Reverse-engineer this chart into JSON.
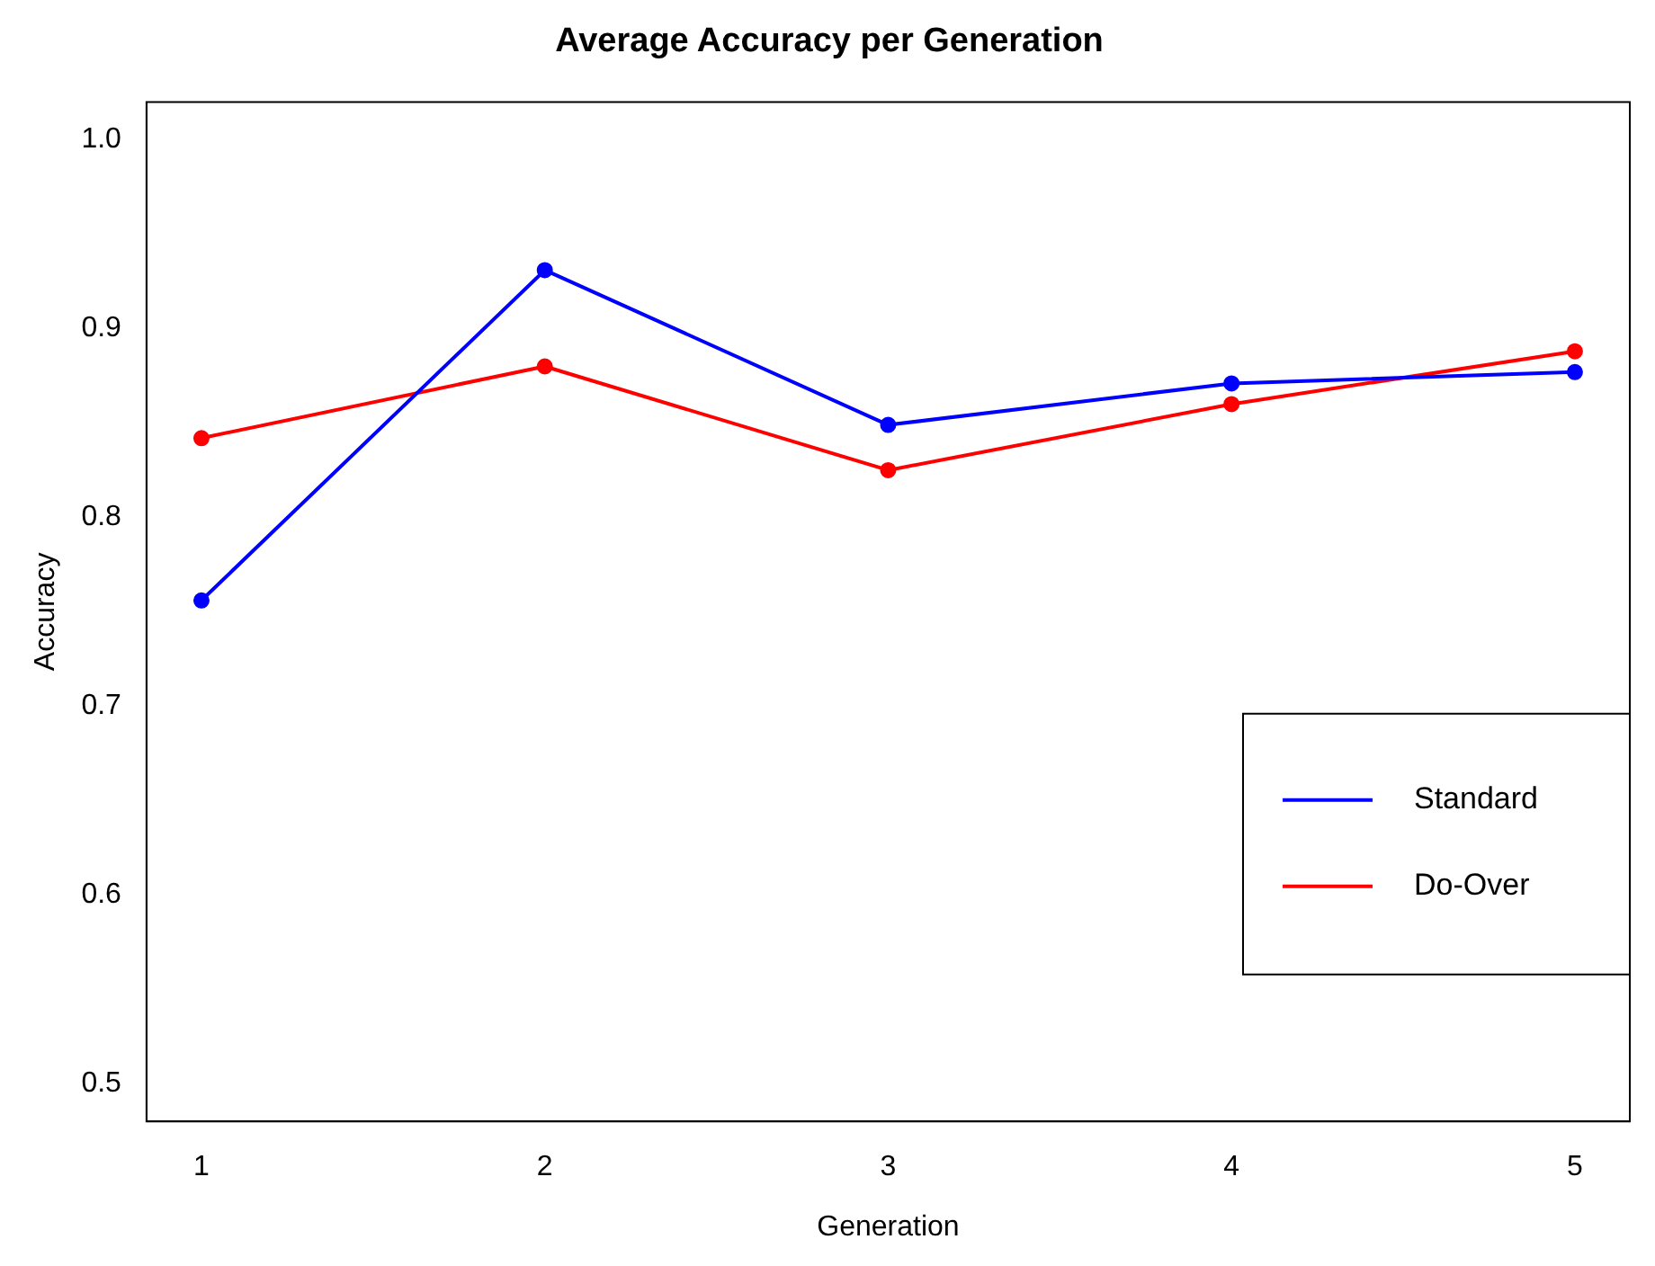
{
  "chart_data": {
    "type": "line",
    "title": "Average Accuracy per Generation",
    "xlabel": "Generation",
    "ylabel": "Accuracy",
    "x": [
      1,
      2,
      3,
      4,
      5
    ],
    "series": [
      {
        "name": "Standard",
        "color": "#0000ff",
        "values": [
          0.756,
          0.931,
          0.849,
          0.871,
          0.877
        ]
      },
      {
        "name": "Do-Over",
        "color": "#ff0000",
        "values": [
          0.842,
          0.88,
          0.825,
          0.86,
          0.888
        ]
      }
    ],
    "xlim": [
      0.84,
      5.16
    ],
    "xticks": [
      1,
      2,
      3,
      4,
      5
    ],
    "ylim": [
      0.48,
      1.02
    ],
    "yticks": [
      {
        "value": 0.5,
        "label": "0.5"
      },
      {
        "value": 0.6,
        "label": "0.6"
      },
      {
        "value": 0.7,
        "label": "0.7"
      },
      {
        "value": 0.8,
        "label": "0.8"
      },
      {
        "value": 0.9,
        "label": "0.9"
      },
      {
        "value": 1.0,
        "label": "1.0"
      }
    ],
    "grid": false,
    "legend": "right",
    "marker": "circle",
    "line_style": "solid"
  }
}
